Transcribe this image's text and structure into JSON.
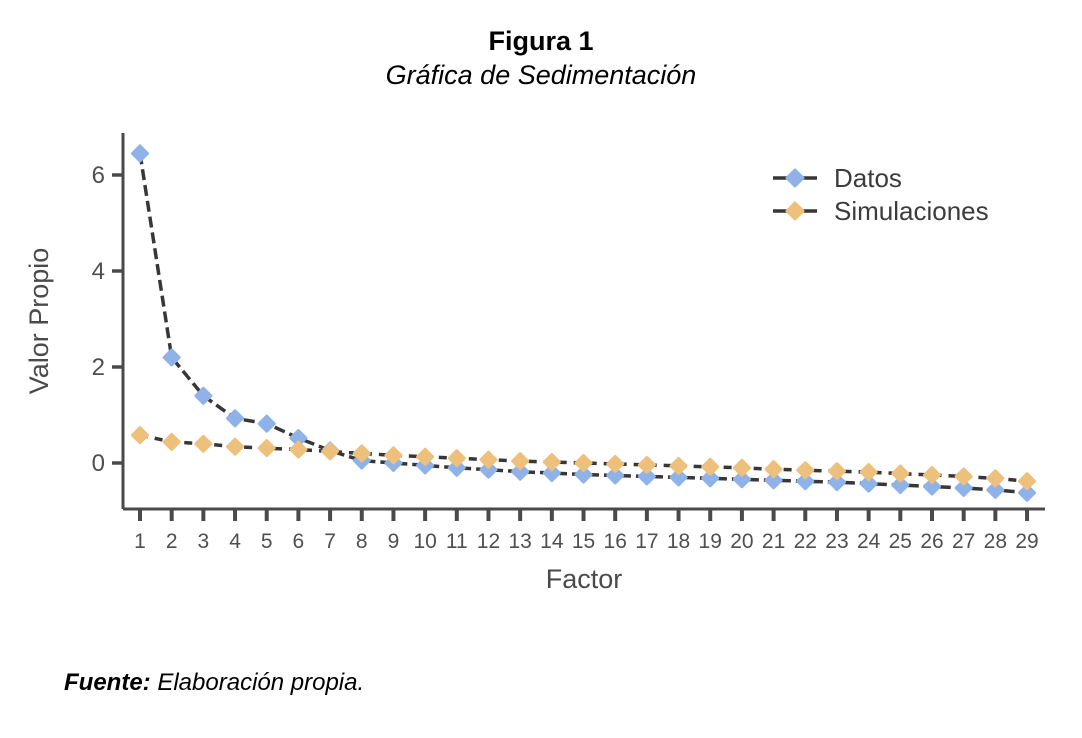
{
  "figure": {
    "title": "Figura 1",
    "subtitle": "Gráfica de Sedimentación",
    "source_label": "Fuente:",
    "source_text": "Elaboración propia."
  },
  "chart_data": {
    "type": "line",
    "title": "Figura 1 — Gráfica de Sedimentación",
    "xlabel": "Factor",
    "ylabel": "Valor Propio",
    "x": [
      1,
      2,
      3,
      4,
      5,
      6,
      7,
      8,
      9,
      10,
      11,
      12,
      13,
      14,
      15,
      16,
      17,
      18,
      19,
      20,
      21,
      22,
      23,
      24,
      25,
      26,
      27,
      28,
      29
    ],
    "y_ticks": [
      0,
      2,
      4,
      6
    ],
    "ylim": [
      -0.98,
      6.9
    ],
    "grid": false,
    "legend_position": "top-right",
    "axis_color": "#4a4a4a",
    "tick_label_color": "#4f4f4f",
    "series": [
      {
        "name": "Datos",
        "marker": "diamond",
        "marker_color": "#8fb3e8",
        "line_color": "#373737",
        "line_style": "dashed",
        "line_dash": "11 5",
        "values": [
          6.45,
          2.2,
          1.4,
          0.93,
          0.82,
          0.52,
          0.26,
          0.05,
          0.0,
          -0.05,
          -0.1,
          -0.14,
          -0.18,
          -0.21,
          -0.24,
          -0.26,
          -0.28,
          -0.3,
          -0.32,
          -0.34,
          -0.36,
          -0.38,
          -0.4,
          -0.43,
          -0.46,
          -0.49,
          -0.52,
          -0.56,
          -0.62
        ]
      },
      {
        "name": "Simulaciones",
        "marker": "diamond",
        "marker_color": "#edc07c",
        "line_color": "#373737",
        "line_style": "dashed",
        "line_dash": "8 7",
        "values": [
          0.58,
          0.44,
          0.4,
          0.34,
          0.31,
          0.28,
          0.24,
          0.2,
          0.16,
          0.13,
          0.1,
          0.07,
          0.04,
          0.02,
          0.0,
          -0.02,
          -0.04,
          -0.06,
          -0.08,
          -0.1,
          -0.13,
          -0.15,
          -0.17,
          -0.19,
          -0.22,
          -0.25,
          -0.28,
          -0.32,
          -0.38
        ]
      }
    ]
  }
}
